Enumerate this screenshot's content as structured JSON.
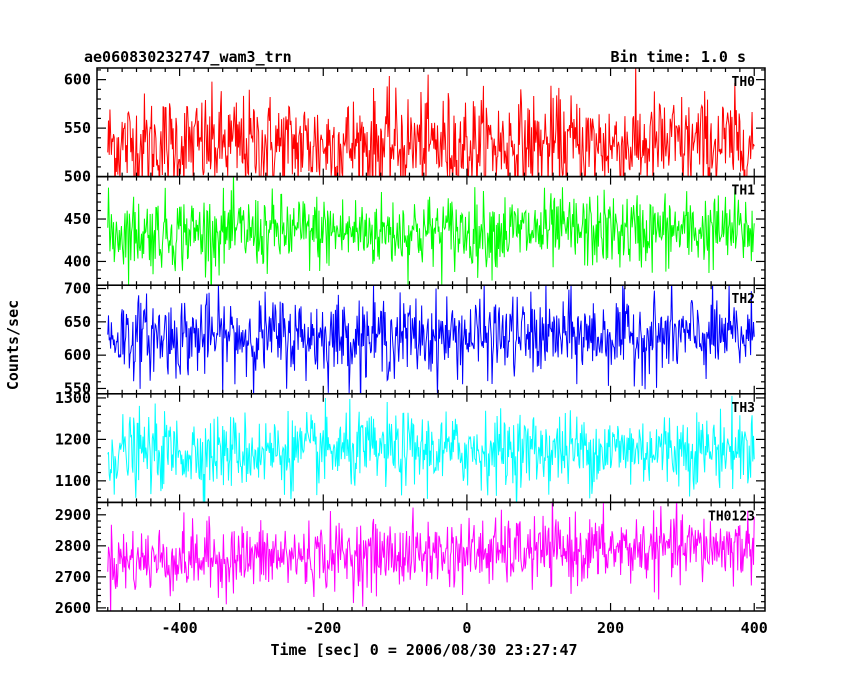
{
  "chart_data": {
    "type": "line",
    "title": "ae060830232747_wam3_trn",
    "subtitle": "Bin time: 1.0 s",
    "xlabel": "Time [sec] 0 = 2006/08/30 23:27:47",
    "ylabel": "Counts/sec",
    "xlim": [
      -515,
      415
    ],
    "x_range_data": [
      -500,
      400
    ],
    "bin_time_s": 1.0,
    "x_ticks": [
      -400,
      -200,
      0,
      200,
      400
    ],
    "grid": false,
    "panels": [
      {
        "name": "TH0",
        "color": "#ff0000",
        "ylim": [
          500,
          612
        ],
        "y_ticks": [
          500,
          550,
          600
        ],
        "mean": 533,
        "spread": 26,
        "trend": 0
      },
      {
        "name": "TH1",
        "color": "#00ff00",
        "ylim": [
          372,
          500
        ],
        "y_ticks": [
          400,
          450
        ],
        "mean": 434,
        "spread": 22,
        "trend": 2
      },
      {
        "name": "TH2",
        "color": "#0000ff",
        "ylim": [
          542,
          705
        ],
        "y_ticks": [
          550,
          600,
          650,
          700
        ],
        "mean": 628,
        "spread": 30,
        "trend": 0
      },
      {
        "name": "TH3",
        "color": "#00ffff",
        "ylim": [
          1048,
          1310
        ],
        "y_ticks": [
          1100,
          1200,
          1300
        ],
        "mean": 1168,
        "spread": 45,
        "trend": 10
      },
      {
        "name": "TH0123",
        "color": "#ff00ff",
        "ylim": [
          2590,
          2940
        ],
        "y_ticks": [
          2600,
          2700,
          2800,
          2900
        ],
        "mean": 2752,
        "spread": 55,
        "trend": 45
      }
    ]
  }
}
